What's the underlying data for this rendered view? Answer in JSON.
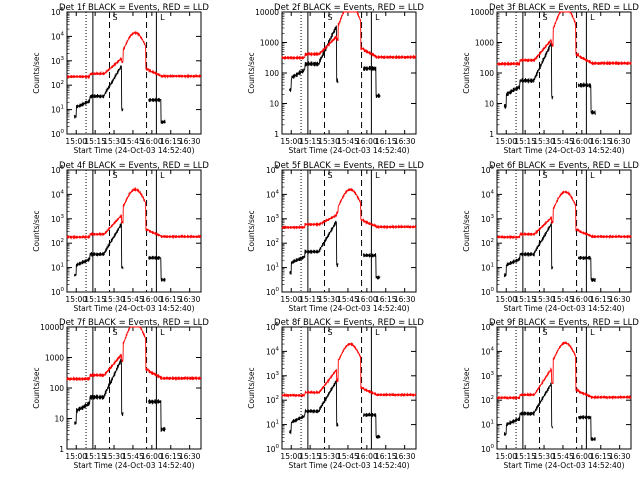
{
  "chart_data": [
    {
      "type": "line",
      "title": "Det 1f BLACK = Events, RED = LLD",
      "xlabel": "Start Time (24-Oct-03 14:52:40)",
      "ylabel": "Counts/sec",
      "x_ticks": [
        "15:00",
        "15:15",
        "15:30",
        "15:45",
        "16:00",
        "16:15",
        "16:30"
      ],
      "y_ticks": [
        "10^0",
        "10^1",
        "10^2",
        "10^3",
        "10^4",
        "10^5"
      ],
      "ylim": [
        1,
        100000
      ],
      "marker_labels": [
        "S",
        "L"
      ],
      "series": [
        {
          "name": "Events",
          "color": "#000000"
        },
        {
          "name": "LLD",
          "color": "#ff0000"
        }
      ]
    },
    {
      "type": "line",
      "title": "Det 2f BLACK = Events, RED = LLD",
      "xlabel": "Start Time (24-Oct-03 14:52:40)",
      "ylabel": "Counts/sec",
      "x_ticks": [
        "15:00",
        "15:15",
        "15:30",
        "15:45",
        "16:00",
        "16:15",
        "16:30"
      ],
      "y_ticks": [
        "1",
        "10",
        "100",
        "1000",
        "10000"
      ],
      "ylim": [
        1,
        10000
      ],
      "marker_labels": [
        "S",
        "L"
      ],
      "series": [
        {
          "name": "Events",
          "color": "#000000"
        },
        {
          "name": "LLD",
          "color": "#ff0000"
        }
      ]
    },
    {
      "type": "line",
      "title": "Det 3f BLACK = Events, RED = LLD",
      "xlabel": "Start Time (24-Oct-03 14:52:40)",
      "ylabel": "Counts/sec",
      "x_ticks": [
        "15:00",
        "15:15",
        "15:30",
        "15:45",
        "16:00",
        "16:15",
        "16:30"
      ],
      "y_ticks": [
        "1",
        "10",
        "100",
        "1000",
        "10000"
      ],
      "ylim": [
        1,
        10000
      ],
      "marker_labels": [
        "S",
        "L"
      ],
      "series": [
        {
          "name": "Events",
          "color": "#000000"
        },
        {
          "name": "LLD",
          "color": "#ff0000"
        }
      ]
    },
    {
      "type": "line",
      "title": "Det 4f BLACK = Events, RED = LLD",
      "xlabel": "Start Time (24-Oct-03 14:52:40)",
      "ylabel": "Counts/sec",
      "x_ticks": [
        "15:00",
        "15:15",
        "15:30",
        "15:45",
        "16:00",
        "16:15",
        "16:30"
      ],
      "y_ticks": [
        "10^0",
        "10^1",
        "10^2",
        "10^3",
        "10^4",
        "10^5"
      ],
      "ylim": [
        1,
        100000
      ],
      "marker_labels": [
        "S",
        "L"
      ],
      "series": [
        {
          "name": "Events",
          "color": "#000000"
        },
        {
          "name": "LLD",
          "color": "#ff0000"
        }
      ]
    },
    {
      "type": "line",
      "title": "Det 5f BLACK = Events, RED = LLD",
      "xlabel": "Start Time (24-Oct-03 14:52:40)",
      "ylabel": "Counts/sec",
      "x_ticks": [
        "15:00",
        "15:15",
        "15:30",
        "15:45",
        "16:00",
        "16:15",
        "16:30"
      ],
      "y_ticks": [
        "10^0",
        "10^1",
        "10^2",
        "10^3",
        "10^4",
        "10^5"
      ],
      "ylim": [
        1,
        100000
      ],
      "marker_labels": [
        "S",
        "L"
      ],
      "series": [
        {
          "name": "Events",
          "color": "#000000"
        },
        {
          "name": "LLD",
          "color": "#ff0000"
        }
      ]
    },
    {
      "type": "line",
      "title": "Det 6f BLACK = Events, RED = LLD",
      "xlabel": "Start Time (24-Oct-03 14:52:40)",
      "ylabel": "Counts/sec",
      "x_ticks": [
        "15:00",
        "15:15",
        "15:30",
        "15:45",
        "16:00",
        "16:15",
        "16:30"
      ],
      "y_ticks": [
        "10^0",
        "10^1",
        "10^2",
        "10^3",
        "10^4",
        "10^5"
      ],
      "ylim": [
        1,
        100000
      ],
      "marker_labels": [
        "S",
        "L"
      ],
      "series": [
        {
          "name": "Events",
          "color": "#000000"
        },
        {
          "name": "LLD",
          "color": "#ff0000"
        }
      ]
    },
    {
      "type": "line",
      "title": "Det 7f BLACK = Events, RED = LLD",
      "xlabel": "Start Time (24-Oct-03 14:52:40)",
      "ylabel": "Counts/sec",
      "x_ticks": [
        "15:00",
        "15:15",
        "15:30",
        "15:45",
        "16:00",
        "16:15",
        "16:30"
      ],
      "y_ticks": [
        "1",
        "10",
        "100",
        "1000",
        "10000"
      ],
      "ylim": [
        1,
        10000
      ],
      "marker_labels": [
        "S",
        "L"
      ],
      "series": [
        {
          "name": "Events",
          "color": "#000000"
        },
        {
          "name": "LLD",
          "color": "#ff0000"
        }
      ]
    },
    {
      "type": "line",
      "title": "Det 8f BLACK = Events, RED = LLD",
      "xlabel": "Start Time (24-Oct-03 14:52:40)",
      "ylabel": "Counts/sec",
      "x_ticks": [
        "15:00",
        "15:15",
        "15:30",
        "15:45",
        "16:00",
        "16:15",
        "16:30"
      ],
      "y_ticks": [
        "10^0",
        "10^1",
        "10^2",
        "10^3",
        "10^4",
        "10^5"
      ],
      "ylim": [
        1,
        100000
      ],
      "marker_labels": [
        "S",
        "L"
      ],
      "series": [
        {
          "name": "Events",
          "color": "#000000"
        },
        {
          "name": "LLD",
          "color": "#ff0000"
        }
      ]
    },
    {
      "type": "line",
      "title": "Det 9f BLACK = Events, RED = LLD",
      "xlabel": "Start Time (24-Oct-03 14:52:40)",
      "ylabel": "Counts/sec",
      "x_ticks": [
        "15:00",
        "15:15",
        "15:30",
        "15:45",
        "16:00",
        "16:15",
        "16:30"
      ],
      "y_ticks": [
        "10^0",
        "10^1",
        "10^2",
        "10^3",
        "10^4",
        "10^5"
      ],
      "ylim": [
        1,
        100000
      ],
      "marker_labels": [
        "S",
        "L"
      ],
      "series": [
        {
          "name": "Events",
          "color": "#000000"
        },
        {
          "name": "LLD",
          "color": "#ff0000"
        }
      ]
    }
  ]
}
